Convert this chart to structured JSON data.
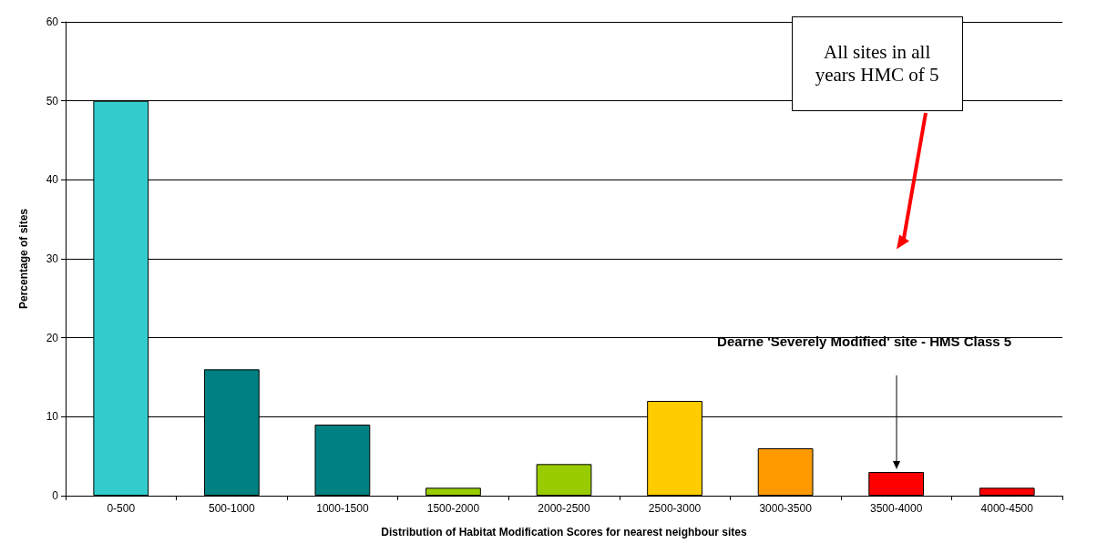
{
  "chart_data": {
    "type": "bar",
    "xlabel": "Distribution of Habitat Modification Scores for nearest neighbour sites",
    "ylabel": "Percentage of sites",
    "categories": [
      "0-500",
      "500-1000",
      "1000-1500",
      "1500-2000",
      "2000-2500",
      "2500-3000",
      "3000-3500",
      "3500-4000",
      "4000-4500"
    ],
    "values": [
      50,
      16,
      9,
      1,
      4,
      12,
      6,
      3,
      1
    ],
    "colors": [
      "#33cccc",
      "#008080",
      "#008080",
      "#99cc00",
      "#99cc00",
      "#ffcc00",
      "#ff9900",
      "#ff0000",
      "#ff0000"
    ],
    "ylim": [
      0,
      60
    ],
    "yticks": [
      0,
      10,
      20,
      30,
      40,
      50,
      60
    ],
    "grid": "y",
    "annotations": [
      "All sites in all years HMC of 5",
      "Dearne 'Severely Modified' site - HMS Class 5"
    ]
  }
}
